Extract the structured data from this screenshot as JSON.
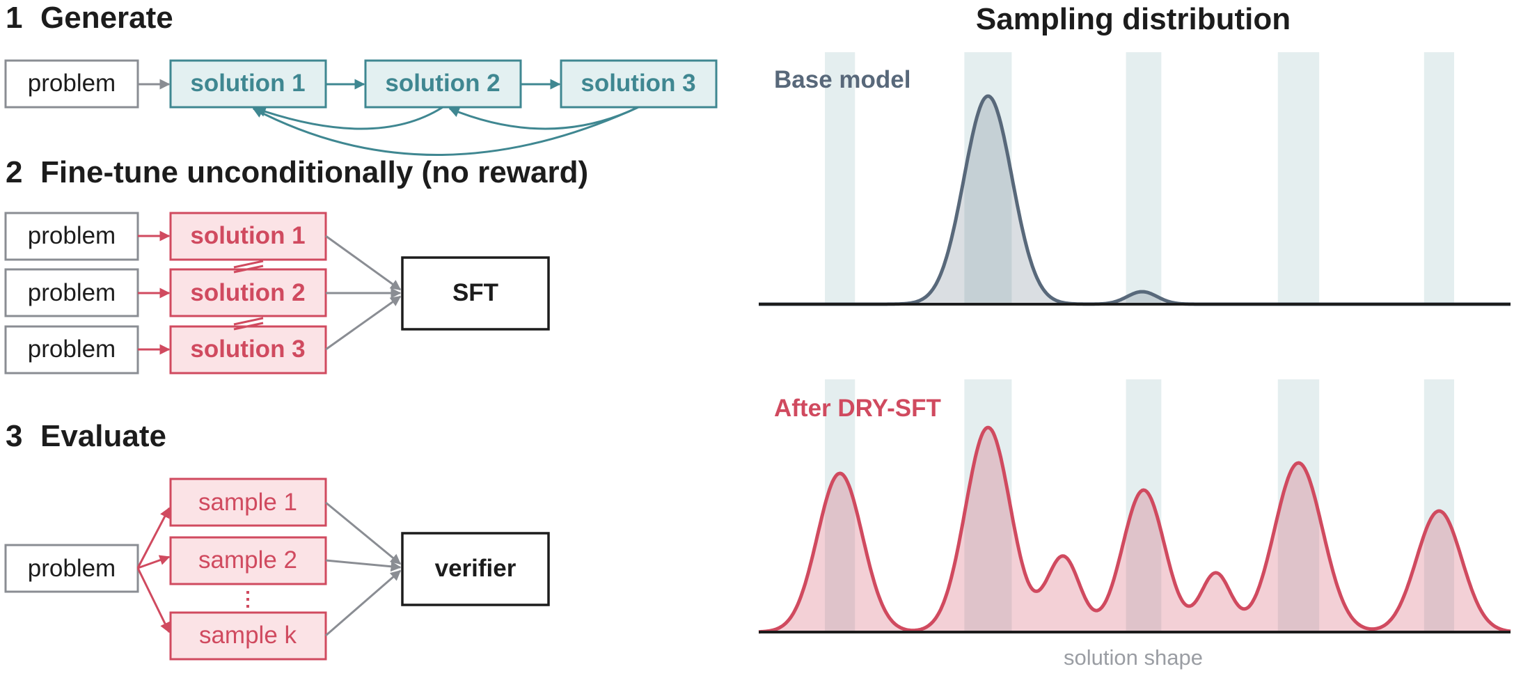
{
  "colors": {
    "teal": "#3f8791",
    "red": "#d04a5f",
    "grey": "#8a8d93",
    "slate": "#58687a",
    "band": "#dbe8ea"
  },
  "left": {
    "step1": {
      "num": "1",
      "title": "Generate",
      "problem": "problem",
      "solutions": [
        "solution 1",
        "solution 2",
        "solution 3"
      ]
    },
    "step2": {
      "num": "2",
      "title": "Fine-tune unconditionally (no reward)",
      "problems": [
        "problem",
        "problem",
        "problem"
      ],
      "solutions": [
        "solution 1",
        "solution 2",
        "solution 3"
      ],
      "target": "SFT"
    },
    "step3": {
      "num": "3",
      "title": "Evaluate",
      "problem": "problem",
      "samples": [
        "sample 1",
        "sample 2",
        "sample k"
      ],
      "target": "verifier"
    }
  },
  "right": {
    "title": "Sampling distribution",
    "xlabel": "solution shape"
  },
  "chart_data": [
    {
      "type": "area",
      "title": "Base model",
      "x_range": [
        0,
        1
      ],
      "peaks": [
        {
          "center": 0.305,
          "height": 1.0,
          "width": 0.032
        },
        {
          "center": 0.51,
          "height": 0.06,
          "width": 0.02
        }
      ],
      "bands": [
        0.108,
        0.305,
        0.512,
        0.718,
        0.905
      ],
      "color": "#58687a"
    },
    {
      "type": "area",
      "title": "After DRY-SFT",
      "x_range": [
        0,
        1
      ],
      "peaks": [
        {
          "center": 0.108,
          "height": 0.76,
          "width": 0.03
        },
        {
          "center": 0.305,
          "height": 0.98,
          "width": 0.03
        },
        {
          "center": 0.405,
          "height": 0.36,
          "width": 0.022
        },
        {
          "center": 0.512,
          "height": 0.68,
          "width": 0.028
        },
        {
          "center": 0.608,
          "height": 0.28,
          "width": 0.02
        },
        {
          "center": 0.718,
          "height": 0.81,
          "width": 0.032
        },
        {
          "center": 0.905,
          "height": 0.58,
          "width": 0.03
        }
      ],
      "bands": [
        0.108,
        0.305,
        0.512,
        0.718,
        0.905
      ],
      "color": "#d04a5f"
    }
  ]
}
